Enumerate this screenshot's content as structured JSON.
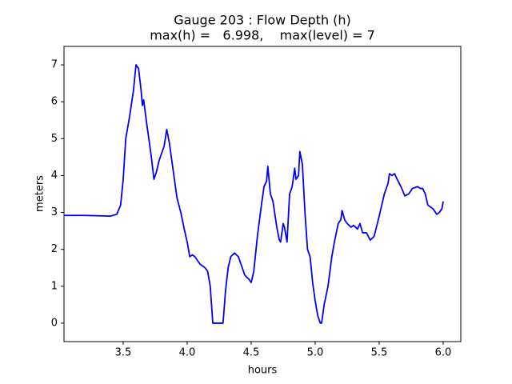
{
  "chart_data": {
    "type": "line",
    "title": "Gauge 203 : Flow Depth (h)",
    "subtitle": "max(h) =   6.998,    max(level) = 7",
    "xlabel": "hours",
    "ylabel": "meters",
    "xlim": [
      3.0375,
      6.1375
    ],
    "ylim": [
      -0.5,
      7.5
    ],
    "xticks": [
      3.5,
      {
        "value": 4.0,
        "label": "4.0"
      },
      4.5,
      {
        "value": 5.0,
        "label": "5.0"
      },
      5.5,
      {
        "value": 6.0,
        "label": "6.0"
      }
    ],
    "yticks": [
      0,
      1,
      2,
      3,
      4,
      5,
      6,
      7
    ],
    "grid": false,
    "series": [
      {
        "color": "#0000ff",
        "x": [
          3.04,
          3.2,
          3.4,
          3.45,
          3.48,
          3.5,
          3.52,
          3.55,
          3.58,
          3.6,
          3.62,
          3.64,
          3.65,
          3.66,
          3.68,
          3.7,
          3.72,
          3.74,
          3.76,
          3.78,
          3.8,
          3.82,
          3.84,
          3.86,
          3.88,
          3.9,
          3.92,
          3.95,
          3.98,
          4.0,
          4.02,
          4.04,
          4.06,
          4.08,
          4.1,
          4.14,
          4.16,
          4.18,
          4.2,
          4.28,
          4.3,
          4.32,
          4.34,
          4.37,
          4.4,
          4.42,
          4.45,
          4.48,
          4.5,
          4.52,
          4.55,
          4.58,
          4.6,
          4.62,
          4.63,
          4.65,
          4.67,
          4.7,
          4.72,
          4.73,
          4.75,
          4.76,
          4.78,
          4.8,
          4.82,
          4.84,
          4.85,
          4.87,
          4.88,
          4.9,
          4.92,
          4.94,
          4.96,
          4.98,
          5.0,
          5.02,
          5.04,
          5.05,
          5.07,
          5.1,
          5.13,
          5.15,
          5.18,
          5.2,
          5.21,
          5.23,
          5.25,
          5.28,
          5.3,
          5.33,
          5.35,
          5.37,
          5.4,
          5.43,
          5.46,
          5.5,
          5.54,
          5.57,
          5.58,
          5.6,
          5.62,
          5.64,
          5.67,
          5.7,
          5.73,
          5.76,
          5.8,
          5.82,
          5.84,
          5.86,
          5.88,
          5.92,
          5.95,
          5.97,
          5.99,
          6.0
        ],
        "values": [
          2.92,
          2.92,
          2.9,
          2.95,
          3.2,
          3.9,
          5.0,
          5.6,
          6.3,
          7.0,
          6.9,
          6.3,
          5.9,
          6.05,
          5.5,
          5.0,
          4.5,
          3.9,
          4.1,
          4.4,
          4.6,
          4.8,
          5.25,
          4.9,
          4.4,
          3.9,
          3.4,
          3.0,
          2.5,
          2.2,
          1.8,
          1.85,
          1.8,
          1.7,
          1.6,
          1.5,
          1.4,
          1.0,
          0.0,
          0.0,
          0.9,
          1.5,
          1.8,
          1.9,
          1.8,
          1.6,
          1.3,
          1.2,
          1.1,
          1.4,
          2.4,
          3.2,
          3.7,
          3.85,
          4.25,
          3.5,
          3.3,
          2.6,
          2.25,
          2.2,
          2.7,
          2.6,
          2.2,
          3.5,
          3.7,
          4.2,
          3.9,
          4.0,
          4.65,
          4.3,
          3.0,
          2.0,
          1.8,
          1.1,
          0.6,
          0.2,
          0.0,
          0.0,
          0.5,
          1.0,
          1.8,
          2.2,
          2.7,
          2.8,
          3.05,
          2.8,
          2.7,
          2.6,
          2.65,
          2.55,
          2.7,
          2.45,
          2.45,
          2.25,
          2.35,
          2.9,
          3.5,
          3.8,
          4.05,
          4.0,
          4.05,
          3.9,
          3.7,
          3.45,
          3.5,
          3.65,
          3.7,
          3.65,
          3.65,
          3.5,
          3.2,
          3.1,
          2.95,
          3.0,
          3.1,
          3.3
        ]
      }
    ]
  }
}
